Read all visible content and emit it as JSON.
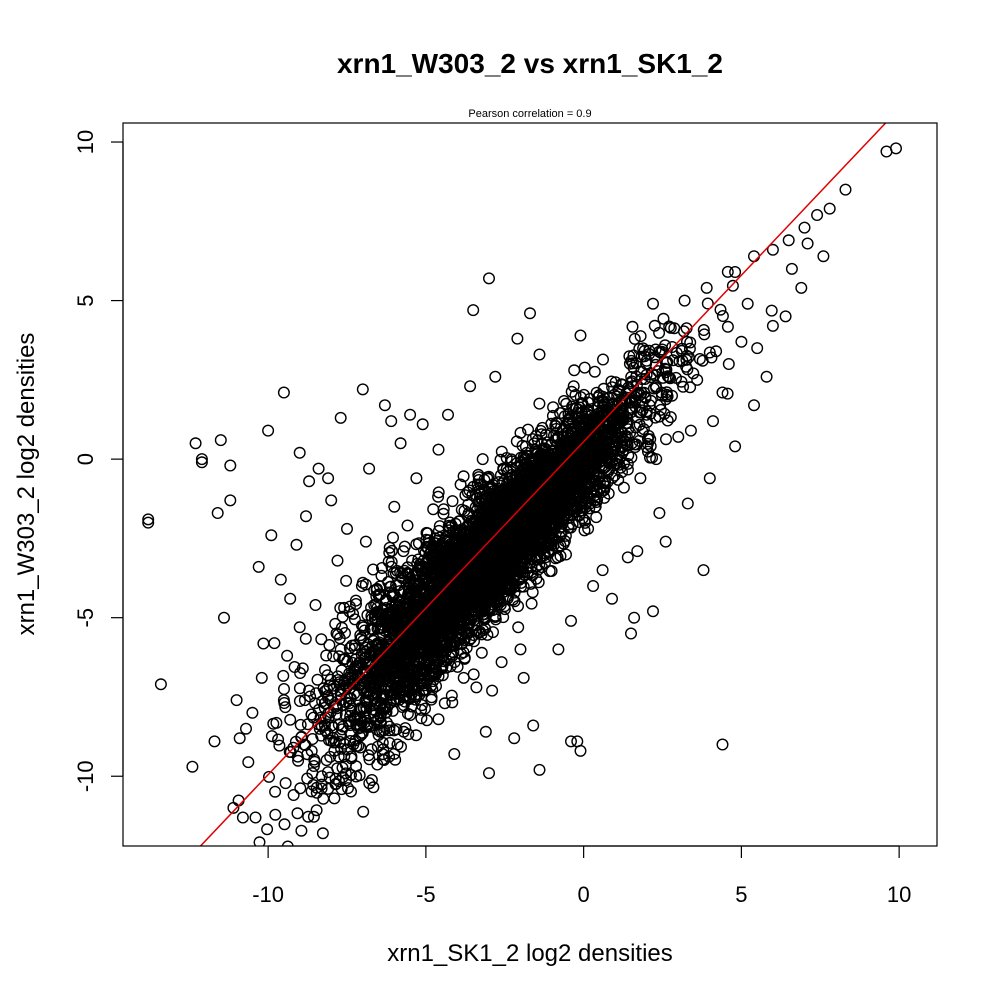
{
  "chart_data": {
    "type": "scatter",
    "title": "xrn1_W303_2 vs xrn1_SK1_2",
    "subtitle": "Pearson correlation =  0.9",
    "xlabel": "xrn1_SK1_2 log2 densities",
    "ylabel": "xrn1_W303_2 log2 densities",
    "xlim": [
      -14.6,
      11.2
    ],
    "ylim": [
      -12.2,
      10.6
    ],
    "xticks": [
      -10,
      -5,
      0,
      5,
      10
    ],
    "yticks": [
      -10,
      -5,
      0,
      5,
      10
    ],
    "xtick_labels": [
      "-10",
      "-5",
      "0",
      "5",
      "10"
    ],
    "ytick_labels": [
      "-10",
      "-5",
      "0",
      "5",
      "10"
    ],
    "grid": false,
    "marker": "open-circle",
    "marker_color": "#000000",
    "fit_line": {
      "slope": 1.05,
      "intercept": 0.55,
      "color": "#e00000"
    },
    "cloud": {
      "n": 5200,
      "center": [
        -3.0,
        -3.0
      ],
      "x_sd": 2.4,
      "corr": 0.9,
      "y_resid_sd": 0.95
    },
    "points": [
      [
        -13.8,
        -1.9
      ],
      [
        -13.8,
        -2.0
      ],
      [
        -13.4,
        -7.1
      ],
      [
        -12.3,
        0.5
      ],
      [
        -12.4,
        -9.7
      ],
      [
        -12.1,
        -0.1
      ],
      [
        -12.1,
        0.0
      ],
      [
        -11.7,
        -8.9
      ],
      [
        -11.6,
        -1.7
      ],
      [
        -11.5,
        0.6
      ],
      [
        -11.4,
        -5.0
      ],
      [
        -11.2,
        -0.2
      ],
      [
        -11.2,
        -1.3
      ],
      [
        -11.1,
        -11.0
      ],
      [
        -10.9,
        -8.8
      ],
      [
        -10.8,
        -11.3
      ],
      [
        -10.4,
        -11.3
      ],
      [
        -10.0,
        0.9
      ],
      [
        -9.9,
        -2.4
      ],
      [
        -9.5,
        2.1
      ],
      [
        -9.0,
        0.2
      ],
      [
        -8.4,
        -0.3
      ],
      [
        -8.7,
        -0.7
      ],
      [
        -8.1,
        -0.6
      ],
      [
        -7.7,
        1.3
      ],
      [
        -7.0,
        2.2
      ],
      [
        -6.3,
        1.7
      ],
      [
        -6.1,
        1.2
      ],
      [
        -5.8,
        0.5
      ],
      [
        -5.5,
        1.4
      ],
      [
        -5.1,
        1.1
      ],
      [
        -3.0,
        5.7
      ],
      [
        -3.5,
        4.7
      ],
      [
        -1.7,
        4.6
      ],
      [
        -2.1,
        3.8
      ],
      [
        -1.4,
        3.3
      ],
      [
        -0.3,
        2.8
      ],
      [
        -0.1,
        3.9
      ],
      [
        -2.8,
        2.6
      ],
      [
        -3.6,
        2.3
      ],
      [
        -4.3,
        1.4
      ],
      [
        -6.8,
        -0.3
      ],
      [
        -9.1,
        -2.7
      ],
      [
        -10.3,
        -3.4
      ],
      [
        -9.3,
        -4.4
      ],
      [
        -10.2,
        -6.9
      ],
      [
        -9.5,
        -7.6
      ],
      [
        -8.7,
        -7.3
      ],
      [
        -8.2,
        -8.4
      ],
      [
        -7.9,
        -9.2
      ],
      [
        -8.6,
        -9.9
      ],
      [
        -8.1,
        -10.4
      ],
      [
        -7.9,
        -10.7
      ],
      [
        -8.3,
        -10.0
      ],
      [
        -7.3,
        -9.0
      ],
      [
        -6.5,
        -8.7
      ],
      [
        -5.9,
        -9.0
      ],
      [
        -4.1,
        -9.3
      ],
      [
        -3.0,
        -9.9
      ],
      [
        -3.1,
        -8.6
      ],
      [
        -2.2,
        -8.8
      ],
      [
        -1.6,
        -8.4
      ],
      [
        -1.4,
        -9.8
      ],
      [
        -0.4,
        -8.9
      ],
      [
        -0.1,
        -9.2
      ],
      [
        -0.2,
        -8.9
      ],
      [
        1.5,
        -5.5
      ],
      [
        1.6,
        -5.0
      ],
      [
        1.4,
        -3.1
      ],
      [
        2.4,
        -1.7
      ],
      [
        3.8,
        -3.5
      ],
      [
        4.4,
        -9.0
      ],
      [
        2.2,
        -4.8
      ],
      [
        0.9,
        -4.4
      ],
      [
        0.3,
        -4.0
      ],
      [
        1.8,
        -0.6
      ],
      [
        2.3,
        0.0
      ],
      [
        3.0,
        0.7
      ],
      [
        3.4,
        0.9
      ],
      [
        4.1,
        1.2
      ],
      [
        4.4,
        2.1
      ],
      [
        4.6,
        3.0
      ],
      [
        5.0,
        3.7
      ],
      [
        5.5,
        3.5
      ],
      [
        6.0,
        4.2
      ],
      [
        2.2,
        4.9
      ],
      [
        3.2,
        5.0
      ],
      [
        3.9,
        5.4
      ],
      [
        4.8,
        5.9
      ],
      [
        5.4,
        6.4
      ],
      [
        6.0,
        6.6
      ],
      [
        6.5,
        6.9
      ],
      [
        7.0,
        7.3
      ],
      [
        7.4,
        7.7
      ],
      [
        7.8,
        7.9
      ],
      [
        8.3,
        8.5
      ],
      [
        9.6,
        9.7
      ],
      [
        9.9,
        9.8
      ],
      [
        7.1,
        6.8
      ],
      [
        5.2,
        4.9
      ],
      [
        6.6,
        6.0
      ],
      [
        2.8,
        2.0
      ],
      [
        1.2,
        1.7
      ],
      [
        0.5,
        1.0
      ],
      [
        -0.6,
        -0.5
      ],
      [
        -1.1,
        -2.7
      ],
      [
        -1.5,
        -3.4
      ],
      [
        -2.0,
        -6.0
      ],
      [
        -2.6,
        -6.4
      ],
      [
        -3.4,
        -7.2
      ],
      [
        -4.6,
        -8.2
      ],
      [
        -5.2,
        -7.0
      ],
      [
        -6.2,
        -6.5
      ],
      [
        -6.6,
        -5.1
      ],
      [
        -7.0,
        -3.9
      ],
      [
        -7.5,
        -2.2
      ],
      [
        -8.0,
        -1.3
      ],
      [
        -8.8,
        -1.8
      ],
      [
        -9.6,
        -3.8
      ],
      [
        -9.8,
        -5.8
      ],
      [
        -10.5,
        -8.0
      ],
      [
        -11.0,
        -7.6
      ],
      [
        -10.7,
        -8.5
      ],
      [
        -9.2,
        -9.1
      ],
      [
        -7.4,
        -8.1
      ],
      [
        -5.7,
        -8.6
      ],
      [
        -4.4,
        -7.7
      ],
      [
        -3.8,
        -6.9
      ],
      [
        -2.9,
        -7.3
      ],
      [
        -1.9,
        -6.9
      ],
      [
        -0.8,
        -6.0
      ],
      [
        -0.4,
        -5.1
      ],
      [
        0.6,
        -3.5
      ],
      [
        1.7,
        -2.9
      ],
      [
        2.6,
        -2.6
      ],
      [
        3.3,
        -1.4
      ],
      [
        4.0,
        -0.6
      ],
      [
        4.8,
        0.4
      ],
      [
        5.4,
        1.7
      ],
      [
        5.8,
        2.6
      ],
      [
        6.4,
        4.5
      ],
      [
        6.9,
        5.4
      ],
      [
        7.6,
        6.4
      ],
      [
        4.2,
        3.4
      ],
      [
        3.6,
        2.5
      ],
      [
        2.0,
        3.1
      ],
      [
        1.1,
        2.2
      ],
      [
        0.2,
        1.9
      ],
      [
        -0.9,
        0.6
      ],
      [
        -1.8,
        0.2
      ],
      [
        -2.4,
        -0.4
      ],
      [
        -3.2,
        0.0
      ],
      [
        -3.9,
        -0.8
      ],
      [
        -4.6,
        0.3
      ],
      [
        -5.3,
        -0.6
      ],
      [
        -6.0,
        -1.5
      ],
      [
        -6.9,
        -2.6
      ],
      [
        -7.8,
        -3.2
      ],
      [
        -8.5,
        -4.6
      ],
      [
        -9.0,
        -5.3
      ],
      [
        -9.4,
        -6.2
      ],
      [
        -8.9,
        -6.6
      ],
      [
        -8.2,
        -7.7
      ],
      [
        -7.7,
        -6.0
      ],
      [
        -6.5,
        -4.3
      ]
    ]
  }
}
